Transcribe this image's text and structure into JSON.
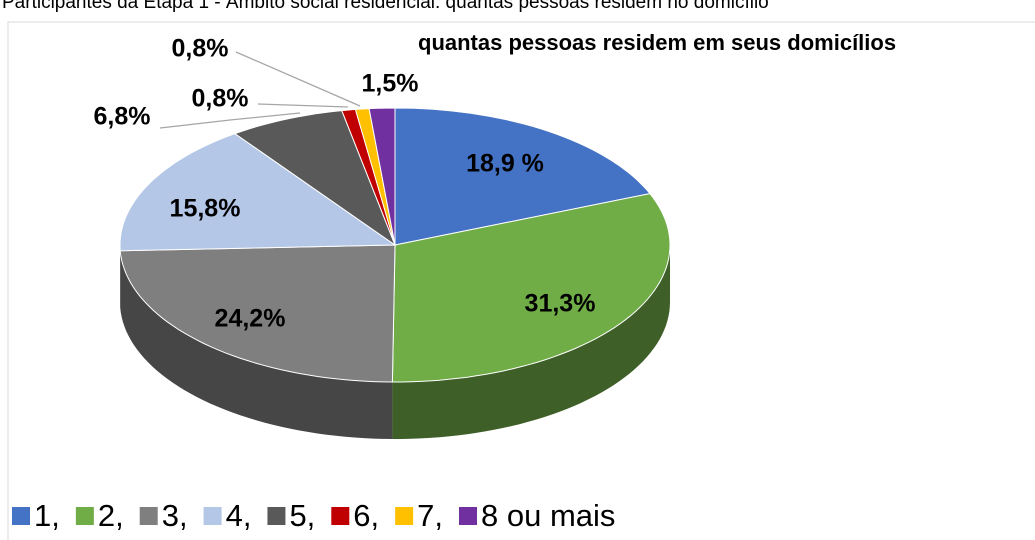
{
  "header": {
    "text": "Participantes da Etapa 1 - Âmbito social residencial: quantas pessoas residem no domicílio"
  },
  "chart_data": {
    "type": "pie3d",
    "title": "quantas pessoas residem em seus domicílios",
    "categories": [
      "1,",
      "2,",
      "3,",
      "4,",
      "5,",
      "6,",
      "7,",
      "8 ou mais"
    ],
    "values": [
      18.9,
      31.3,
      24.2,
      15.8,
      6.8,
      0.8,
      0.8,
      1.5
    ],
    "value_labels": [
      "18,9 %",
      "31,3%",
      "24,2%",
      "15,8%",
      "6,8%",
      "0,8%",
      "0,8%",
      "1,5%"
    ],
    "colors": [
      "#4472c4",
      "#70ad47",
      "#7f7f7f",
      "#b4c7e7",
      "#595959",
      "#c00000",
      "#ffc000",
      "#7030a0"
    ],
    "legend": "bottom"
  }
}
